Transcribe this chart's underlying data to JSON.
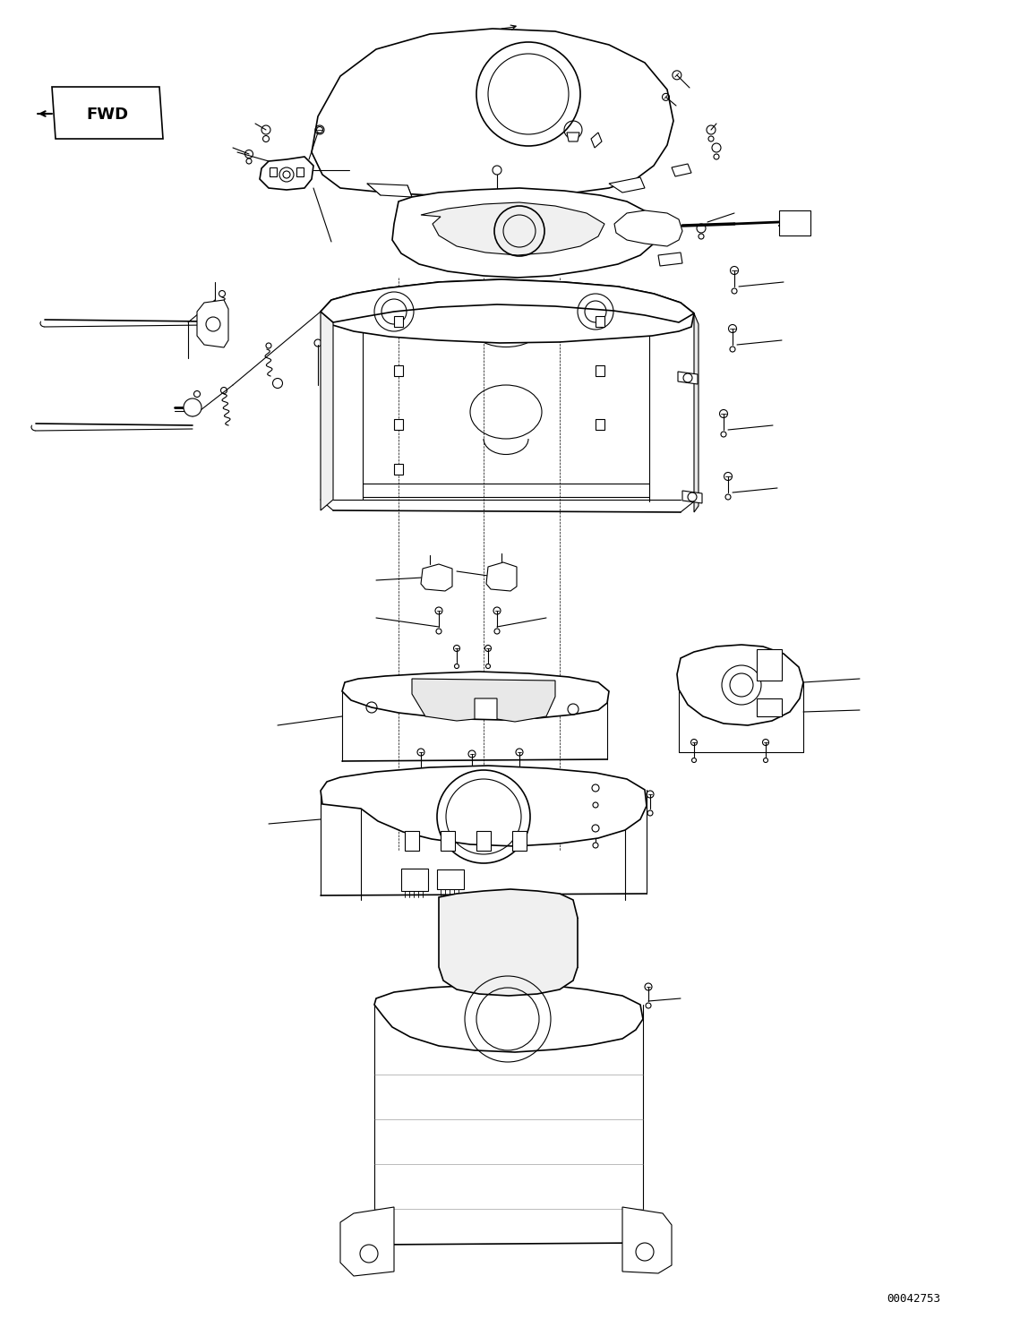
{
  "figsize": [
    11.39,
    14.92
  ],
  "dpi": 100,
  "bg_color": "#ffffff",
  "lc": "#000000",
  "part_number": "00042753",
  "fwd_label": "FWD"
}
